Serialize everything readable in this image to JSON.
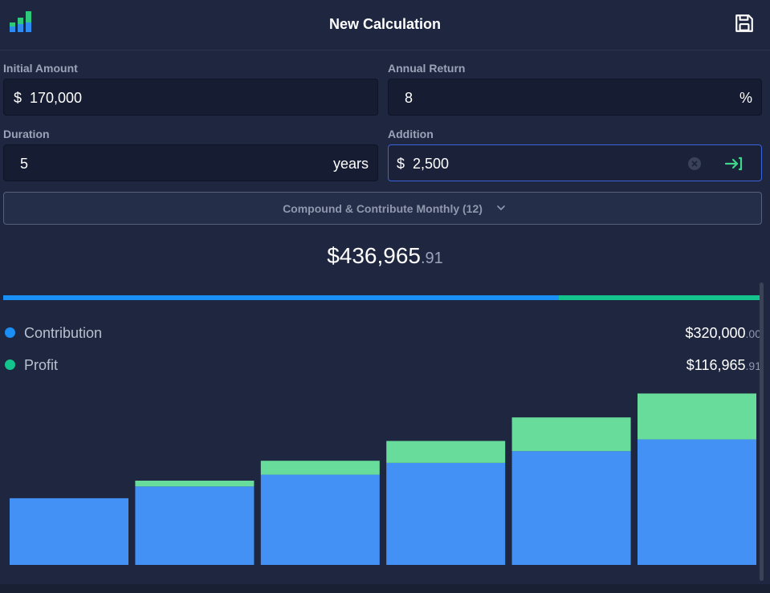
{
  "header": {
    "title": "New Calculation",
    "app_icon": "bar-chart-app-icon",
    "save_icon": "save-icon"
  },
  "inputs": {
    "initial_amount": {
      "label": "Initial Amount",
      "prefix": "$",
      "value": "170,000"
    },
    "annual_return": {
      "label": "Annual Return",
      "value": "8",
      "suffix": "%"
    },
    "duration": {
      "label": "Duration",
      "value": "5",
      "suffix": "years"
    },
    "addition": {
      "label": "Addition",
      "prefix": "$",
      "value": "2,500",
      "clear_icon": "clear-icon",
      "submit_icon": "arrow-right-to-bar-icon"
    }
  },
  "frequency": {
    "selected": "Compound & Contribute Monthly (12)",
    "icon": "chevron-down-icon"
  },
  "result": {
    "total_main": "$436,965",
    "total_cents": ".91",
    "contribution_share": 0.732
  },
  "legend": [
    {
      "label": "Contribution",
      "value_main": "$320,000",
      "value_cents": ".00",
      "color": "#1a8ff5"
    },
    {
      "label": "Profit",
      "value_main": "$116,965",
      "value_cents": ".91",
      "color": "#13c48d"
    }
  ],
  "chart_data": {
    "type": "bar",
    "stacked": true,
    "categories": [
      "0",
      "1",
      "2",
      "3",
      "4",
      "5"
    ],
    "series": [
      {
        "name": "Contribution",
        "values": [
          170000,
          200000,
          230000,
          260000,
          290000,
          320000
        ],
        "color": "#4491f6"
      },
      {
        "name": "Profit",
        "values": [
          0,
          14800,
          35500,
          56000,
          86000,
          116966
        ],
        "color": "#67dc9b"
      }
    ],
    "ylim": [
      0,
      450000
    ]
  },
  "colors": {
    "background": "#1f2740",
    "contribution": "#1a8ff5",
    "profit": "#13c48d",
    "active_border": "#3a63d9"
  }
}
